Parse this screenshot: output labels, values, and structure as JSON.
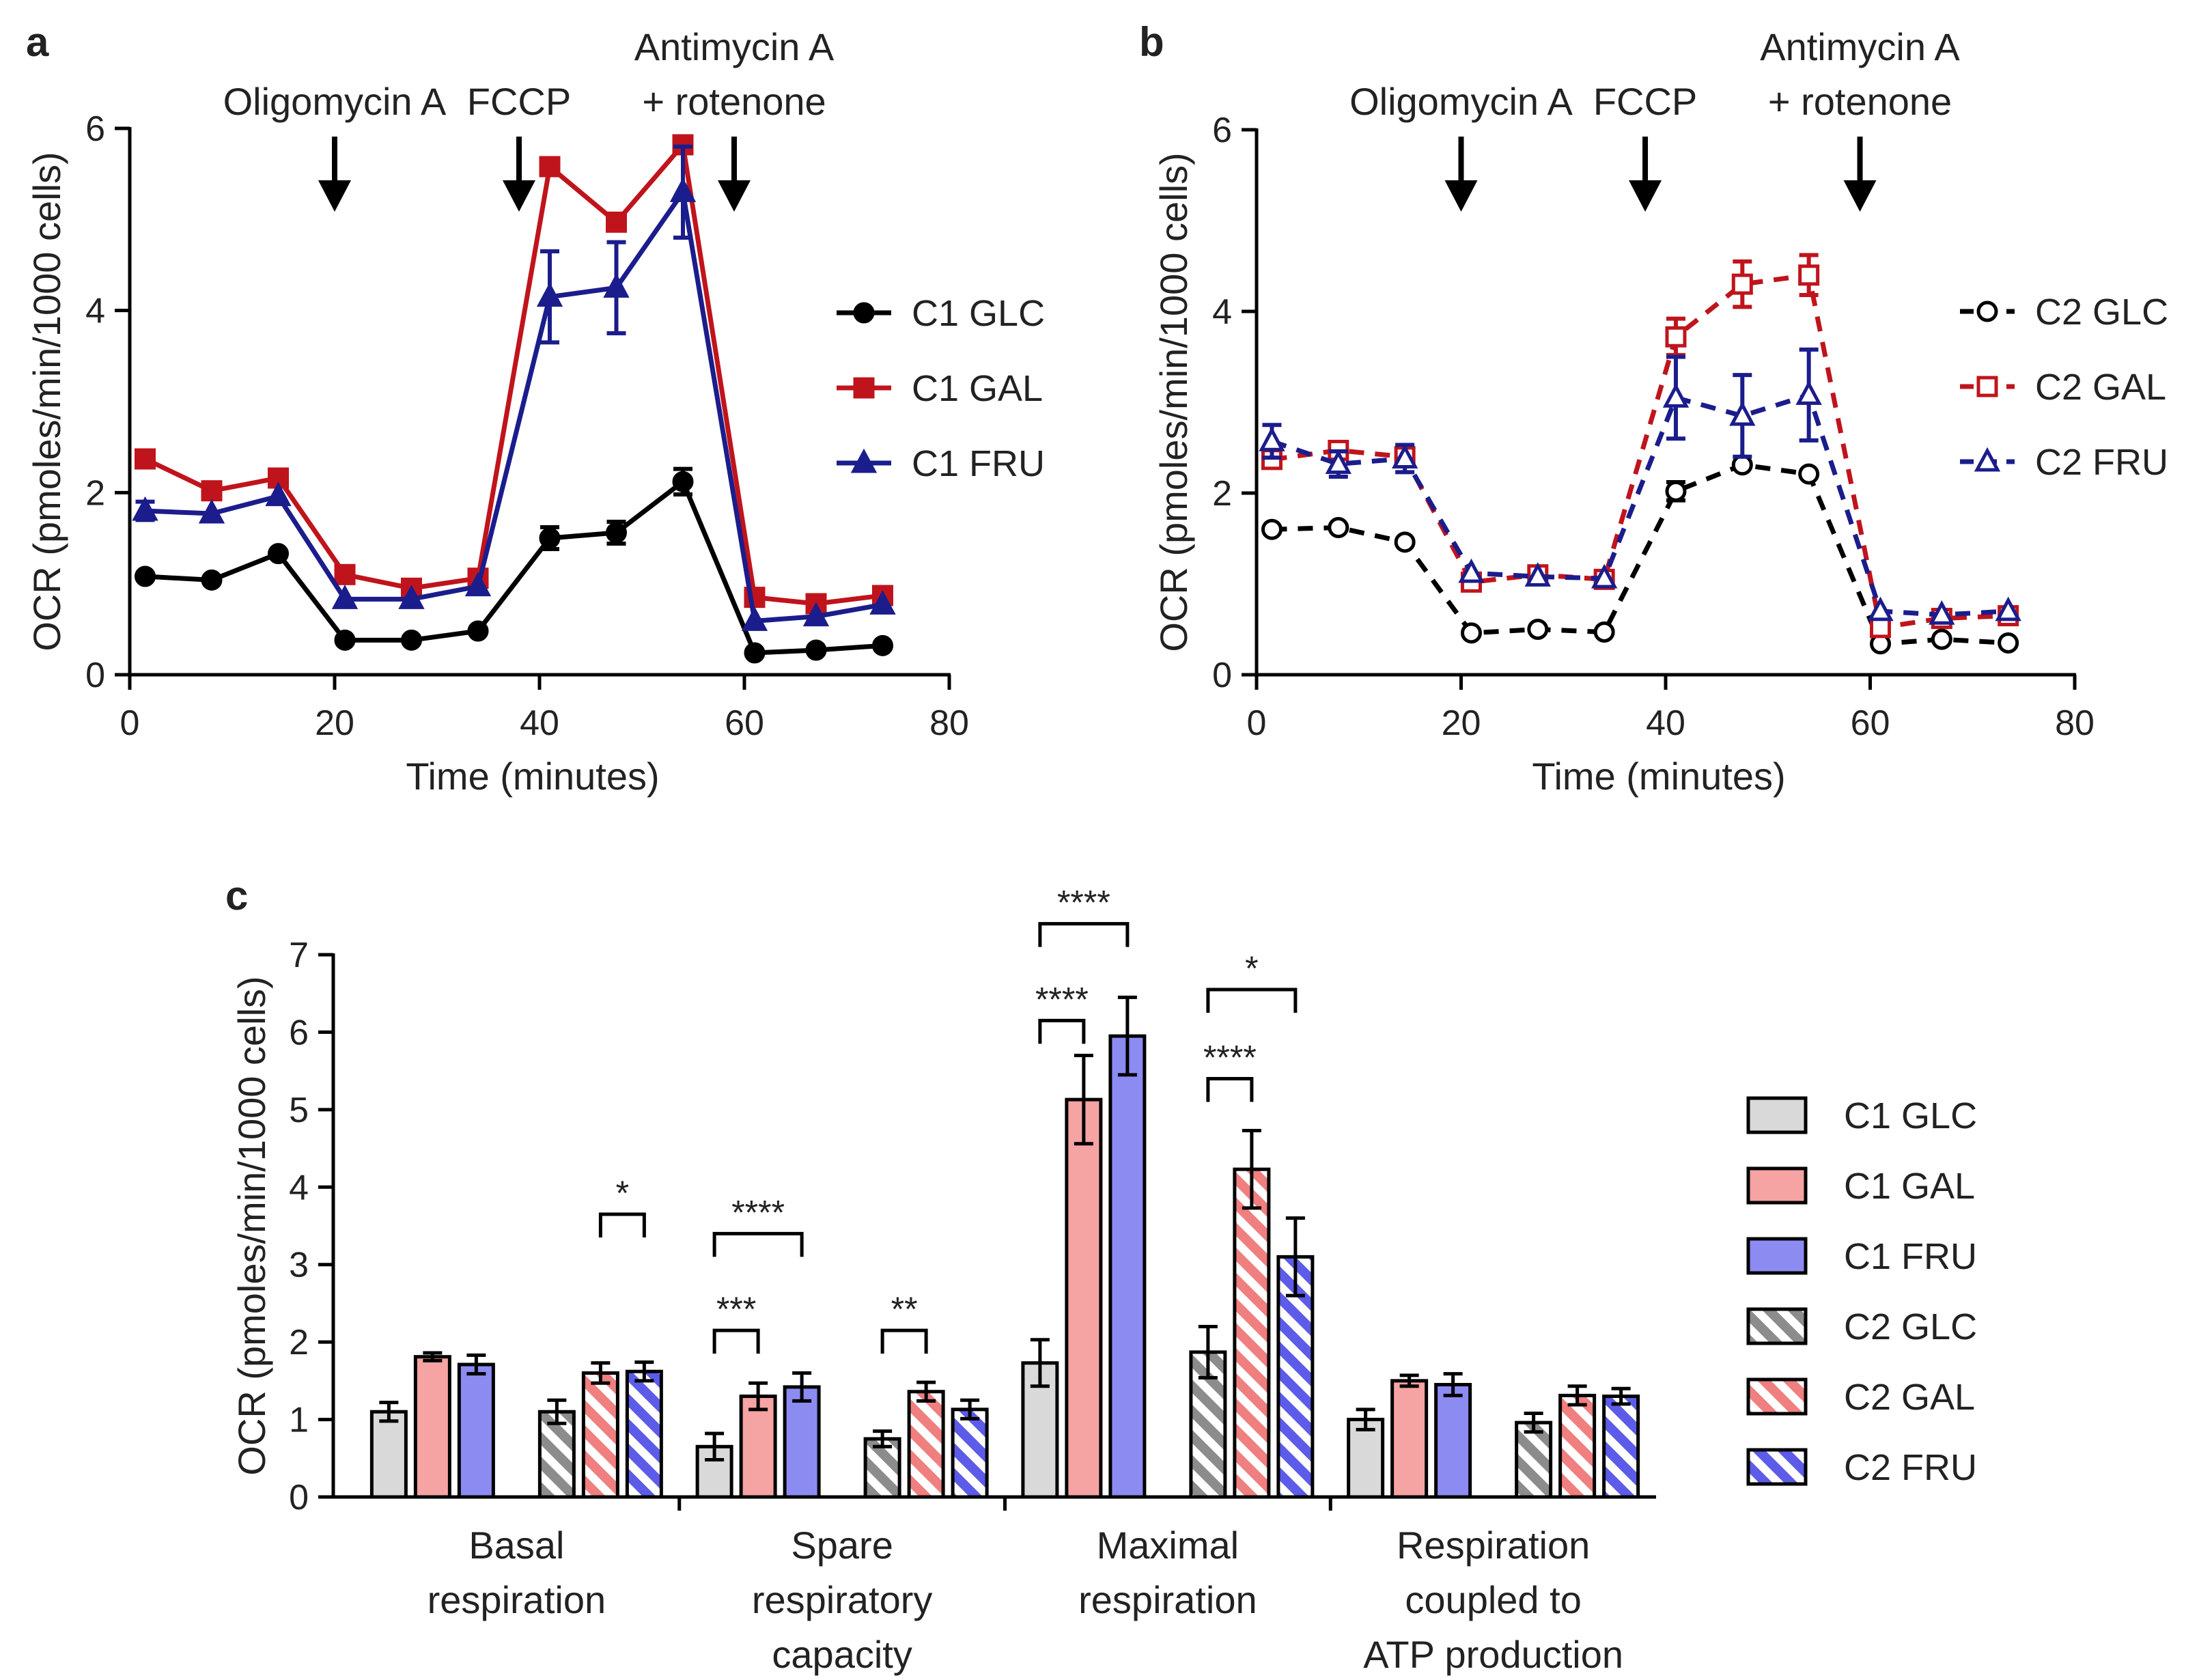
{
  "panel_labels": {
    "a": "a",
    "b": "b",
    "c": "c"
  },
  "chart_data": [
    {
      "id": "a",
      "type": "line",
      "xlabel": "Time (minutes)",
      "ylabel": "OCR (pmoles/min/1000 cells)",
      "xlim": [
        0,
        80
      ],
      "ylim": [
        0,
        6
      ],
      "xticks": [
        0,
        20,
        40,
        60,
        80
      ],
      "yticks": [
        0,
        2,
        4,
        6
      ],
      "annotations": [
        {
          "lines": [
            "Oligomycin A"
          ],
          "x": 20
        },
        {
          "lines": [
            "FCCP"
          ],
          "x": 38
        },
        {
          "lines": [
            "Antimycin A",
            "+ rotenone"
          ],
          "x": 59
        }
      ],
      "x": [
        1.5,
        8,
        14.5,
        21,
        27.5,
        34,
        41,
        47.5,
        54,
        61,
        67,
        73.5
      ],
      "series": [
        {
          "name": "C1 GLC",
          "color": "#000000",
          "marker": "circle",
          "dashed": false,
          "values": [
            1.08,
            1.04,
            1.33,
            0.38,
            0.38,
            0.48,
            1.5,
            1.56,
            2.12,
            0.24,
            0.27,
            0.32
          ],
          "errors": [
            0,
            0,
            0,
            0,
            0,
            0,
            0.12,
            0.12,
            0.14,
            0,
            0,
            0
          ]
        },
        {
          "name": "C1 GAL",
          "color": "#c0141c",
          "marker": "square",
          "dashed": false,
          "values": [
            2.37,
            2.02,
            2.16,
            1.1,
            0.95,
            1.06,
            5.58,
            4.97,
            5.82,
            0.85,
            0.78,
            0.87
          ],
          "errors": [
            0,
            0,
            0,
            0,
            0,
            0,
            0,
            0,
            0,
            0,
            0,
            0
          ]
        },
        {
          "name": "C1 FRU",
          "color": "#1b1d8c",
          "marker": "triangle",
          "dashed": false,
          "values": [
            1.8,
            1.77,
            1.96,
            0.83,
            0.83,
            0.97,
            4.15,
            4.25,
            5.3,
            0.59,
            0.64,
            0.77
          ],
          "errors": [
            0.1,
            0,
            0,
            0,
            0,
            0,
            0.5,
            0.5,
            0.5,
            0,
            0,
            0
          ]
        }
      ]
    },
    {
      "id": "b",
      "type": "line",
      "xlabel": "Time (minutes)",
      "ylabel": "OCR (pmoles/min/1000 cells)",
      "xlim": [
        0,
        80
      ],
      "ylim": [
        0,
        6
      ],
      "xticks": [
        0,
        20,
        40,
        60,
        80
      ],
      "yticks": [
        0,
        2,
        4,
        6
      ],
      "annotations": [
        {
          "lines": [
            "Oligomycin A"
          ],
          "x": 20
        },
        {
          "lines": [
            "FCCP"
          ],
          "x": 38
        },
        {
          "lines": [
            "Antimycin A",
            "+ rotenone"
          ],
          "x": 59
        }
      ],
      "x": [
        1.5,
        8,
        14.5,
        21,
        27.5,
        34,
        41,
        47.5,
        54,
        61,
        67,
        73.5
      ],
      "series": [
        {
          "name": "C2 GLC",
          "color": "#000000",
          "marker": "circle",
          "dashed": true,
          "values": [
            1.6,
            1.62,
            1.46,
            0.46,
            0.5,
            0.47,
            2.02,
            2.31,
            2.21,
            0.34,
            0.39,
            0.35
          ],
          "errors": [
            0,
            0,
            0,
            0,
            0,
            0,
            0.1,
            0,
            0,
            0,
            0,
            0
          ]
        },
        {
          "name": "C2 GAL",
          "color": "#c0141c",
          "marker": "square",
          "dashed": true,
          "values": [
            2.37,
            2.47,
            2.4,
            1.02,
            1.1,
            1.05,
            3.72,
            4.3,
            4.4,
            0.52,
            0.62,
            0.65
          ],
          "errors": [
            0,
            0,
            0,
            0,
            0,
            0,
            0.2,
            0.25,
            0.22,
            0,
            0,
            0
          ]
        },
        {
          "name": "C2 FRU",
          "color": "#1b1d8c",
          "marker": "triangle",
          "dashed": true,
          "values": [
            2.57,
            2.32,
            2.38,
            1.12,
            1.08,
            1.06,
            3.05,
            2.85,
            3.08,
            0.7,
            0.66,
            0.7
          ],
          "errors": [
            0.18,
            0.14,
            0.15,
            0,
            0,
            0,
            0.45,
            0.45,
            0.5,
            0,
            0,
            0
          ]
        }
      ]
    },
    {
      "id": "c",
      "type": "bar",
      "ylabel": "OCR (pmoles/min/1000 cells)",
      "ylim": [
        0,
        7
      ],
      "yticks": [
        0,
        1,
        2,
        3,
        4,
        5,
        6,
        7
      ],
      "categories": [
        [
          "Basal",
          "respiration"
        ],
        [
          "Spare",
          "respiratory",
          "capacity"
        ],
        [
          "Maximal",
          "respiration"
        ],
        [
          "Respiration",
          "coupled to",
          "ATP production"
        ]
      ],
      "series": [
        {
          "name": "C1 GLC",
          "color": "#d9d9d9",
          "hatched": false,
          "values": [
            1.1,
            0.65,
            1.73,
            1.0
          ],
          "errors": [
            0.12,
            0.17,
            0.3,
            0.13
          ]
        },
        {
          "name": "C1 GAL",
          "color": "#f5a3a3",
          "hatched": false,
          "values": [
            1.81,
            1.3,
            5.13,
            1.5
          ],
          "errors": [
            0.05,
            0.17,
            0.57,
            0.07
          ]
        },
        {
          "name": "C1 FRU",
          "color": "#8b8bf2",
          "hatched": false,
          "values": [
            1.71,
            1.42,
            5.95,
            1.45
          ],
          "errors": [
            0.12,
            0.18,
            0.5,
            0.14
          ]
        },
        {
          "name": "C2 GLC",
          "color": "#8c8c8c",
          "hatched": true,
          "values": [
            1.1,
            0.75,
            1.87,
            0.96
          ],
          "errors": [
            0.15,
            0.1,
            0.33,
            0.12
          ]
        },
        {
          "name": "C2 GAL",
          "color": "#f07f7f",
          "hatched": true,
          "values": [
            1.6,
            1.36,
            4.23,
            1.31
          ],
          "errors": [
            0.13,
            0.12,
            0.5,
            0.12
          ]
        },
        {
          "name": "C2 FRU",
          "color": "#5c5ce8",
          "hatched": true,
          "values": [
            1.62,
            1.13,
            3.1,
            1.3
          ],
          "errors": [
            0.12,
            0.12,
            0.5,
            0.1
          ]
        }
      ],
      "significance": [
        {
          "group": 0,
          "from": 4,
          "to": 5,
          "label": "*",
          "level": 3.65
        },
        {
          "group": 1,
          "from": 0,
          "to": 1,
          "label": "***",
          "level": 2.15
        },
        {
          "group": 1,
          "from": 0,
          "to": 2,
          "label": "****",
          "level": 3.4
        },
        {
          "group": 1,
          "from": 3,
          "to": 4,
          "label": "**",
          "level": 2.15
        },
        {
          "group": 2,
          "from": 0,
          "to": 1,
          "label": "****",
          "level": 6.15
        },
        {
          "group": 2,
          "from": 0,
          "to": 2,
          "label": "****",
          "level": 7.4
        },
        {
          "group": 2,
          "from": 3,
          "to": 4,
          "label": "****",
          "level": 5.4
        },
        {
          "group": 2,
          "from": 3,
          "to": 5,
          "label": "*",
          "level": 6.55
        }
      ]
    }
  ]
}
